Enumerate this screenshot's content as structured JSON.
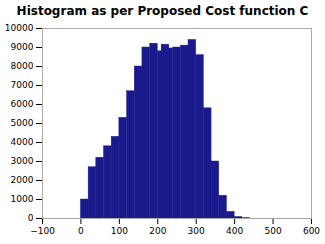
{
  "chart_data": {
    "type": "histogram",
    "title": "Histogram as per Proposed Cost function C",
    "x": [
      0,
      20,
      40,
      60,
      80,
      100,
      120,
      140,
      160,
      180,
      200,
      210,
      220,
      240,
      260,
      280,
      300,
      320,
      340,
      360,
      380,
      400,
      420,
      440
    ],
    "values": [
      1000,
      2700,
      3200,
      3800,
      4300,
      5300,
      6700,
      8000,
      9000,
      9200,
      8800,
      9150,
      8950,
      9000,
      9100,
      9400,
      8600,
      5800,
      3000,
      1200,
      350,
      80,
      15,
      0
    ],
    "bin_width": 20,
    "color": "#1a1a8c",
    "xlim": [
      -100,
      600
    ],
    "ylim": [
      0,
      10000
    ],
    "xticks": [
      -100,
      0,
      100,
      200,
      300,
      400,
      500,
      600
    ],
    "yticks": [
      0,
      1000,
      2000,
      3000,
      4000,
      5000,
      6000,
      7000,
      8000,
      9000,
      10000
    ],
    "grid": false
  }
}
